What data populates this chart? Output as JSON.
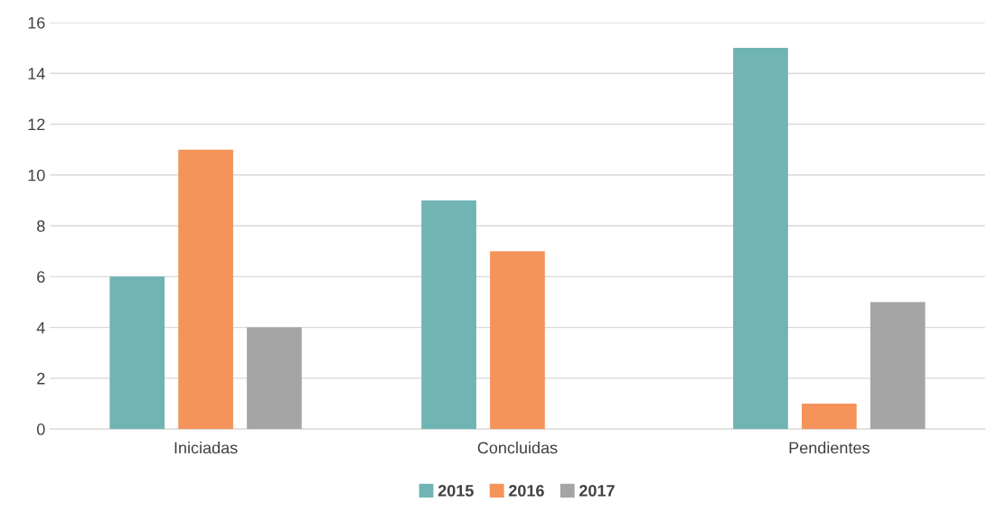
{
  "chart_data": {
    "type": "bar",
    "categories": [
      "Iniciadas",
      "Concluidas",
      "Pendientes"
    ],
    "series": [
      {
        "name": "2015",
        "color": "#70b4b3",
        "values": [
          6,
          9,
          15
        ]
      },
      {
        "name": "2016",
        "color": "#f4935a",
        "values": [
          11,
          7,
          1
        ]
      },
      {
        "name": "2017",
        "color": "#a5a5a5",
        "values": [
          4,
          0,
          5
        ]
      }
    ],
    "ylim": [
      0,
      16
    ],
    "yticks": [
      0,
      2,
      4,
      6,
      8,
      10,
      12,
      14,
      16
    ],
    "grid": "y",
    "legend": "bottom"
  }
}
